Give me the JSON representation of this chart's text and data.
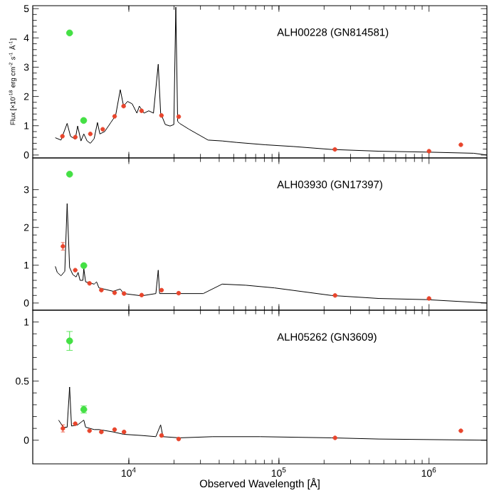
{
  "chart_data": [
    {
      "type": "line",
      "log": "x",
      "ylabel": "Flux [×10$^{-18}$ erg cm$^{-2}$ s$^{-1}$ Å$^{-1}$]",
      "annotations": [
        "ALH00228 (GN814581)"
      ],
      "xlim": [
        2290,
        2430000
      ],
      "ylim": [
        -0.1,
        5.1
      ],
      "xticks": [
        {
          "value": 10000,
          "label": null
        },
        {
          "value": 100000,
          "label": null
        },
        {
          "value": 1000000,
          "label": null
        }
      ],
      "yticks": [
        0,
        1,
        2,
        3,
        4,
        5
      ],
      "tick_labels": "y",
      "series": [
        {
          "color": "#000000",
          "x": [
            3236,
            3532,
            3882,
            4086,
            4395,
            4560,
            4797,
            5012,
            5272,
            5546,
            5875,
            6180,
            6412,
            6902,
            7586,
            8166,
            8770,
            9226,
            9795,
            10520,
            11320,
            11750,
            12620,
            13580,
            14590,
            15700,
            16290,
            17500,
            18840,
            19950,
            20560,
            21150,
            21780,
            25180,
            33730,
            41880,
            52120,
            80700,
            124800,
            223400,
            462400,
            957000,
            1982000,
            2427000
          ],
          "values": [
            0.59,
            0.51,
            1.08,
            0.64,
            0.54,
            0.99,
            0.48,
            0.72,
            0.48,
            0.4,
            0.56,
            1.11,
            0.72,
            0.8,
            1.11,
            1.35,
            2.23,
            1.67,
            1.83,
            1.75,
            1.43,
            1.67,
            1.43,
            1.51,
            1.43,
            3.1,
            1.43,
            1.04,
            0.99,
            1.04,
            5.05,
            1.15,
            1.08,
            0.88,
            0.51,
            0.48,
            0.43,
            0.35,
            0.29,
            0.19,
            0.13,
            0.1,
            0.06,
            0.0
          ]
        },
        {
          "type": "scatter",
          "marker": "circle",
          "color": "#e8452c",
          "x": [
            3610,
            4400,
            5540,
            6700,
            8040,
            9230,
            12160,
            16500,
            21500,
            236000,
            1000000,
            1630000
          ],
          "values": [
            0.64,
            0.61,
            0.72,
            0.88,
            1.32,
            1.67,
            1.51,
            1.35,
            1.31,
            0.19,
            0.13,
            0.35
          ]
        },
        {
          "type": "scatter",
          "marker": "circle",
          "color": "#44e044",
          "x": [
            4030,
            5000
          ],
          "values": [
            4.17,
            1.18
          ]
        }
      ]
    },
    {
      "type": "line",
      "log": "x",
      "annotations": [
        "ALH03930 (GN17397)"
      ],
      "xlim": [
        2290,
        2430000
      ],
      "ylim": [
        -0.19,
        3.84
      ],
      "xticks": [
        {
          "value": 10000,
          "label": null
        },
        {
          "value": 100000,
          "label": null
        },
        {
          "value": 1000000,
          "label": null
        }
      ],
      "yticks": [
        0,
        1,
        2,
        3
      ],
      "tick_labels": "y",
      "series": [
        {
          "color": "#000000",
          "x": [
            3236,
            3334,
            3532,
            3744,
            3882,
            4030,
            4236,
            4457,
            4592,
            4730,
            4943,
            5012,
            5152,
            5875,
            6095,
            6324,
            7870,
            8770,
            9226,
            12170,
            15140,
            15700,
            16030,
            18840,
            31330,
            41880,
            60260,
            93330,
            223400,
            462400,
            957000,
            2427000
          ],
          "values": [
            0.97,
            0.81,
            0.72,
            0.84,
            2.63,
            0.94,
            0.75,
            0.69,
            0.81,
            0.6,
            0.6,
            0.91,
            0.56,
            0.5,
            0.56,
            0.4,
            0.31,
            0.37,
            0.25,
            0.19,
            0.25,
            0.87,
            0.25,
            0.25,
            0.25,
            0.5,
            0.47,
            0.4,
            0.2,
            0.12,
            0.09,
            0.0
          ]
        },
        {
          "type": "scatter",
          "marker": "circle",
          "color": "#e8452c",
          "x": [
            3638,
            4395,
            5470,
            6560,
            8040,
            9290,
            12170,
            16520,
            21470,
            236600,
            1000000
          ],
          "values": [
            1.5,
            0.87,
            0.52,
            0.34,
            0.27,
            0.25,
            0.21,
            0.34,
            0.26,
            0.2,
            0.12
          ],
          "errors": [
            0.1,
            null,
            null,
            null,
            null,
            null,
            null,
            null,
            null,
            null,
            null
          ]
        },
        {
          "type": "scatter",
          "marker": "circle",
          "color": "#44e044",
          "x": [
            4030,
            5012
          ],
          "values": [
            3.41,
            0.99
          ]
        }
      ]
    },
    {
      "type": "line",
      "log": "x",
      "xlabel": "Observed Wavelength [Å]",
      "annotations": [
        "ALH05262 (GN3609)"
      ],
      "xlim": [
        2290,
        2430000
      ],
      "ylim": [
        -0.2,
        1.1
      ],
      "xticks": [
        {
          "value": 10000,
          "label": "10$^{4}$"
        },
        {
          "value": 100000,
          "label": "10$^{5}$"
        },
        {
          "value": 1000000,
          "label": "10$^{6}$"
        }
      ],
      "yticks": [
        0,
        0.5,
        1
      ],
      "series": [
        {
          "color": "#000000",
          "x": [
            3404,
            3664,
            3882,
            4030,
            4150,
            4560,
            5012,
            5152,
            5875,
            6324,
            7870,
            9226,
            12170,
            15140,
            16290,
            16870,
            21780,
            36220,
            75000,
            223400,
            462400,
            2427000
          ],
          "values": [
            0.17,
            0.11,
            0.11,
            0.45,
            0.12,
            0.13,
            0.17,
            0.11,
            0.09,
            0.09,
            0.07,
            0.05,
            0.04,
            0.03,
            0.13,
            0.03,
            0.02,
            0.03,
            0.03,
            0.02,
            0.01,
            0.0
          ]
        },
        {
          "type": "scatter",
          "marker": "circle",
          "color": "#e8452c",
          "x": [
            3638,
            4395,
            5470,
            6560,
            8040,
            9290,
            16520,
            21470,
            236600,
            1630000
          ],
          "values": [
            0.1,
            0.14,
            0.08,
            0.07,
            0.09,
            0.07,
            0.04,
            0.01,
            0.02,
            0.08
          ],
          "errors": [
            0.03,
            null,
            null,
            null,
            null,
            null,
            null,
            null,
            null,
            null
          ]
        },
        {
          "type": "scatter",
          "marker": "circle",
          "color": "#44e044",
          "x": [
            4030,
            5012
          ],
          "values": [
            0.84,
            0.26
          ],
          "errors": [
            0.08,
            0.03
          ]
        }
      ]
    }
  ]
}
